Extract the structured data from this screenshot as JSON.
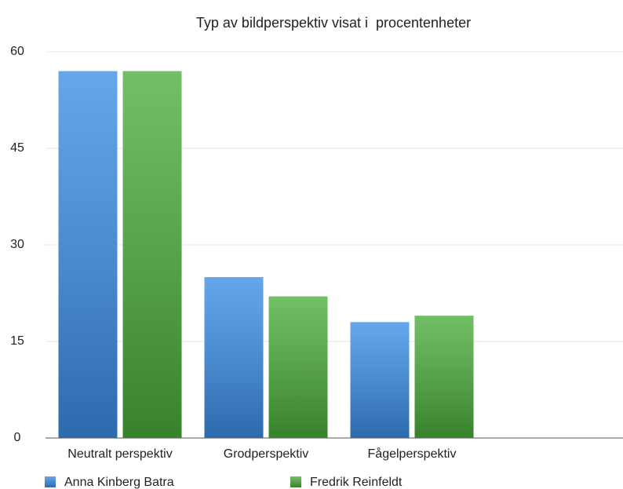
{
  "chart_data": {
    "type": "bar",
    "title": "Typ av bildperspektiv visat i  procentenheter",
    "categories": [
      "Neutralt perspektiv",
      "Grodperspektiv",
      "Fågelperspektiv",
      null
    ],
    "series": [
      {
        "name": "Anna Kinberg Batra",
        "color": "#3a8ee6",
        "values": [
          57,
          25,
          18,
          null
        ]
      },
      {
        "name": "Fredrik Reinfeldt",
        "color": "#4aad3a",
        "values": [
          57,
          22,
          19,
          null
        ]
      }
    ],
    "ylim": [
      0,
      60
    ],
    "yticks": [
      0,
      15,
      30,
      45,
      60
    ],
    "grid": true
  }
}
